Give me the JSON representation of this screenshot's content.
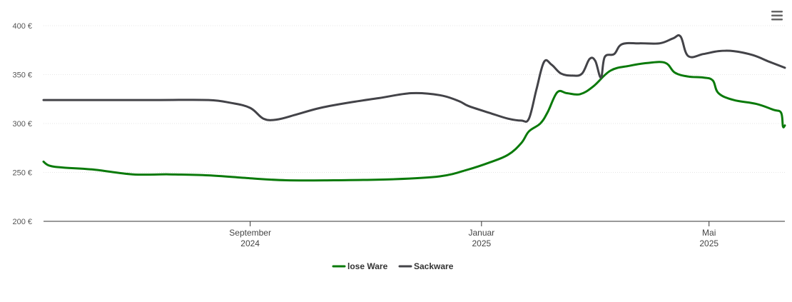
{
  "chart_data": {
    "type": "line",
    "title": "",
    "xlabel": "",
    "ylabel": "",
    "x_range": [
      "2024-05-15",
      "2025-06-10"
    ],
    "ylim": [
      200,
      400
    ],
    "y_ticks": [
      {
        "value": 200,
        "label": "200 €"
      },
      {
        "value": 250,
        "label": "250 €"
      },
      {
        "value": 300,
        "label": "300 €"
      },
      {
        "value": 350,
        "label": "350 €"
      },
      {
        "value": 400,
        "label": "400 €"
      }
    ],
    "x_ticks": [
      {
        "date": "2024-09-01",
        "month": "September",
        "year": "2024"
      },
      {
        "date": "2025-01-01",
        "month": "Januar",
        "year": "2025"
      },
      {
        "date": "2025-05-01",
        "month": "Mai",
        "year": "2025"
      }
    ],
    "grid": true,
    "legend_position": "bottom-center",
    "series": [
      {
        "name": "lose Ware",
        "color": "#0a7a0a",
        "points": [
          [
            "2024-05-15",
            261
          ],
          [
            "2024-05-18",
            257
          ],
          [
            "2024-05-25",
            255
          ],
          [
            "2024-06-10",
            253
          ],
          [
            "2024-07-01",
            248
          ],
          [
            "2024-07-20",
            248
          ],
          [
            "2024-08-10",
            247
          ],
          [
            "2024-09-01",
            244
          ],
          [
            "2024-09-20",
            242
          ],
          [
            "2024-10-15",
            242
          ],
          [
            "2024-11-15",
            243
          ],
          [
            "2024-12-10",
            246
          ],
          [
            "2024-12-25",
            253
          ],
          [
            "2025-01-05",
            260
          ],
          [
            "2025-01-15",
            268
          ],
          [
            "2025-01-22",
            280
          ],
          [
            "2025-01-26",
            292
          ],
          [
            "2025-02-01",
            300
          ],
          [
            "2025-02-05",
            312
          ],
          [
            "2025-02-10",
            332
          ],
          [
            "2025-02-15",
            331
          ],
          [
            "2025-02-22",
            330
          ],
          [
            "2025-03-01",
            338
          ],
          [
            "2025-03-10",
            354
          ],
          [
            "2025-03-20",
            359
          ],
          [
            "2025-03-30",
            362
          ],
          [
            "2025-04-08",
            362
          ],
          [
            "2025-04-13",
            352
          ],
          [
            "2025-04-20",
            348
          ],
          [
            "2025-04-28",
            347
          ],
          [
            "2025-05-03",
            344
          ],
          [
            "2025-05-06",
            331
          ],
          [
            "2025-05-14",
            324
          ],
          [
            "2025-05-26",
            320
          ],
          [
            "2025-06-04",
            314
          ],
          [
            "2025-06-08",
            311
          ],
          [
            "2025-06-09",
            297
          ],
          [
            "2025-06-10",
            298
          ]
        ]
      },
      {
        "name": "Sackware",
        "color": "#434348",
        "points": [
          [
            "2024-05-15",
            324
          ],
          [
            "2024-06-15",
            324
          ],
          [
            "2024-07-15",
            324
          ],
          [
            "2024-08-10",
            324
          ],
          [
            "2024-08-22",
            321
          ],
          [
            "2024-09-01",
            316
          ],
          [
            "2024-09-08",
            305
          ],
          [
            "2024-09-15",
            304
          ],
          [
            "2024-09-25",
            309
          ],
          [
            "2024-10-08",
            316
          ],
          [
            "2024-10-25",
            322
          ],
          [
            "2024-11-08",
            326
          ],
          [
            "2024-11-25",
            331
          ],
          [
            "2024-12-10",
            329
          ],
          [
            "2024-12-20",
            323
          ],
          [
            "2024-12-25",
            318
          ],
          [
            "2025-01-05",
            311
          ],
          [
            "2025-01-15",
            305
          ],
          [
            "2025-01-22",
            303
          ],
          [
            "2025-01-26",
            305
          ],
          [
            "2025-01-30",
            335
          ],
          [
            "2025-02-03",
            363
          ],
          [
            "2025-02-07",
            360
          ],
          [
            "2025-02-12",
            351
          ],
          [
            "2025-02-18",
            349
          ],
          [
            "2025-02-23",
            351
          ],
          [
            "2025-02-27",
            366
          ],
          [
            "2025-03-02",
            364
          ],
          [
            "2025-03-05",
            347
          ],
          [
            "2025-03-07",
            368
          ],
          [
            "2025-03-12",
            371
          ],
          [
            "2025-03-16",
            381
          ],
          [
            "2025-03-25",
            382
          ],
          [
            "2025-04-05",
            382
          ],
          [
            "2025-04-12",
            387
          ],
          [
            "2025-04-16",
            389
          ],
          [
            "2025-04-20",
            369
          ],
          [
            "2025-04-28",
            371
          ],
          [
            "2025-05-06",
            374
          ],
          [
            "2025-05-14",
            374
          ],
          [
            "2025-05-24",
            370
          ],
          [
            "2025-06-02",
            363
          ],
          [
            "2025-06-10",
            357
          ]
        ]
      }
    ]
  },
  "menu": {
    "icon": "hamburger-menu-icon"
  }
}
